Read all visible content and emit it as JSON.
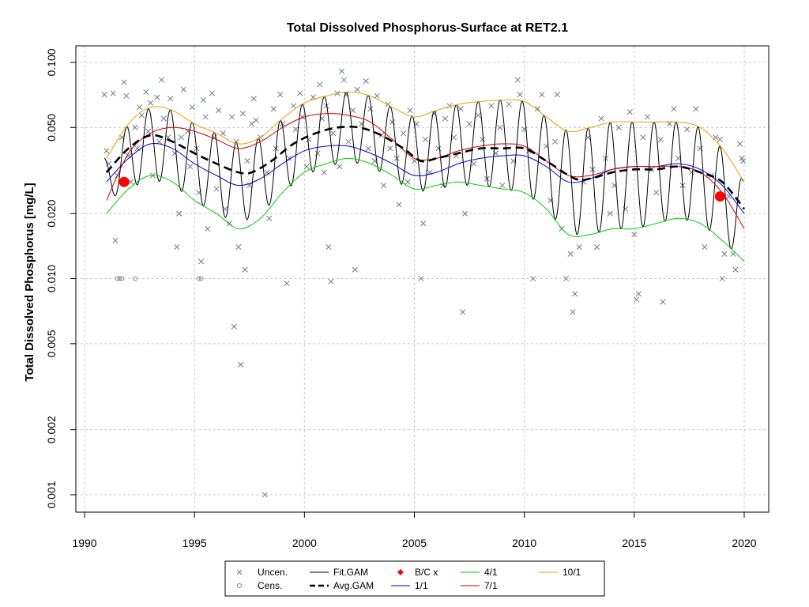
{
  "chart_data": {
    "type": "line",
    "title": "Total Dissolved Phosphorus-Surface at RET2.1",
    "xlabel": "",
    "ylabel": "Total Dissolved Phosphorus [mg/L]",
    "xlim": [
      1990,
      2020
    ],
    "ylim": [
      0.001,
      0.1
    ],
    "y_scale": "log",
    "x_ticks": [
      1990,
      1995,
      2000,
      2005,
      2010,
      2015,
      2020
    ],
    "y_ticks": [
      {
        "value": 0.001,
        "label": "0.001"
      },
      {
        "value": 0.002,
        "label": "0.002"
      },
      {
        "value": 0.005,
        "label": "0.005"
      },
      {
        "value": 0.01,
        "label": "0.010"
      },
      {
        "value": 0.02,
        "label": "0.020"
      },
      {
        "value": 0.05,
        "label": "0.050"
      },
      {
        "value": 0.1,
        "label": "0.100"
      }
    ],
    "grid": true,
    "legend_position": "bottom",
    "legend": [
      {
        "label": "Uncen.",
        "kind": "x-marker",
        "color": "#6e7b8b"
      },
      {
        "label": "Cens.",
        "kind": "circle-marker",
        "color": "#888888"
      },
      {
        "label": "Fit.GAM",
        "kind": "line",
        "color": "#000000"
      },
      {
        "label": "Avg.GAM",
        "kind": "dashed-line",
        "color": "#000000"
      },
      {
        "label": "B/C x",
        "kind": "diamond-marker",
        "color": "#ff0000"
      },
      {
        "label": "1/1",
        "kind": "line",
        "color": "#0000cd"
      },
      {
        "label": "4/1",
        "kind": "line",
        "color": "#00cd00"
      },
      {
        "label": "7/1",
        "kind": "line",
        "color": "#cd0000"
      },
      {
        "label": "10/1",
        "kind": "line",
        "color": "#e8a000"
      }
    ],
    "series": [
      {
        "name": "Avg.GAM",
        "color": "#000000",
        "style": "dashed",
        "x": [
          1991.0,
          1992.0,
          1993.0,
          1994.0,
          1995.0,
          1996.0,
          1997.0,
          1997.6,
          1998.5,
          1999.5,
          2000.5,
          2001.5,
          2002.5,
          2003.5,
          2004.5,
          2005.3,
          2006.0,
          2007.0,
          2008.0,
          2009.0,
          2010.0,
          2011.0,
          2012.3,
          2013.0,
          2014.0,
          2015.0,
          2016.0,
          2017.0,
          2018.0,
          2019.0,
          2020.0
        ],
        "y": [
          0.031,
          0.04,
          0.046,
          0.043,
          0.038,
          0.034,
          0.031,
          0.031,
          0.035,
          0.042,
          0.047,
          0.05,
          0.05,
          0.046,
          0.04,
          0.035,
          0.036,
          0.038,
          0.04,
          0.04,
          0.04,
          0.035,
          0.029,
          0.029,
          0.031,
          0.032,
          0.032,
          0.033,
          0.031,
          0.028,
          0.021
        ]
      },
      {
        "name": "1/1",
        "color": "#0000cd",
        "style": "solid",
        "x": [
          1991.0,
          1992.0,
          1993.0,
          1994.0,
          1995.0,
          1996.0,
          1997.0,
          1998.0,
          1999.0,
          2000.0,
          2001.0,
          2002.0,
          2003.0,
          2004.0,
          2005.0,
          2006.0,
          2007.0,
          2008.0,
          2009.0,
          2010.0,
          2011.0,
          2012.0,
          2013.0,
          2014.0,
          2015.0,
          2016.0,
          2017.0,
          2018.0,
          2019.0,
          2020.0
        ],
        "y": [
          0.028,
          0.036,
          0.042,
          0.04,
          0.034,
          0.03,
          0.027,
          0.029,
          0.034,
          0.039,
          0.041,
          0.041,
          0.038,
          0.034,
          0.03,
          0.031,
          0.034,
          0.036,
          0.037,
          0.037,
          0.033,
          0.028,
          0.029,
          0.032,
          0.033,
          0.033,
          0.034,
          0.032,
          0.027,
          0.02
        ]
      },
      {
        "name": "4/1",
        "color": "#00cd00",
        "style": "solid",
        "x": [
          1991.0,
          1992.0,
          1993.0,
          1994.0,
          1995.0,
          1996.0,
          1997.0,
          1998.0,
          1999.0,
          2000.0,
          2001.0,
          2002.0,
          2003.0,
          2004.0,
          2005.0,
          2006.0,
          2007.0,
          2008.0,
          2009.0,
          2010.0,
          2011.0,
          2012.0,
          2013.0,
          2014.0,
          2015.0,
          2016.0,
          2017.0,
          2018.0,
          2019.0,
          2020.0
        ],
        "y": [
          0.02,
          0.026,
          0.03,
          0.028,
          0.023,
          0.02,
          0.017,
          0.019,
          0.025,
          0.031,
          0.034,
          0.036,
          0.034,
          0.03,
          0.026,
          0.027,
          0.028,
          0.027,
          0.026,
          0.025,
          0.021,
          0.016,
          0.016,
          0.017,
          0.017,
          0.018,
          0.019,
          0.018,
          0.015,
          0.012
        ]
      },
      {
        "name": "7/1",
        "color": "#cd0000",
        "style": "solid",
        "x": [
          1991.0,
          1992.0,
          1993.0,
          1994.0,
          1995.0,
          1996.0,
          1997.0,
          1998.0,
          1999.0,
          2000.0,
          2001.0,
          2002.0,
          2003.0,
          2004.0,
          2005.0,
          2006.0,
          2007.0,
          2008.0,
          2009.0,
          2010.0,
          2011.0,
          2012.0,
          2013.0,
          2014.0,
          2015.0,
          2016.0,
          2017.0,
          2018.0,
          2019.0,
          2020.0
        ],
        "y": [
          0.023,
          0.038,
          0.047,
          0.05,
          0.048,
          0.044,
          0.04,
          0.043,
          0.05,
          0.056,
          0.058,
          0.057,
          0.053,
          0.044,
          0.036,
          0.036,
          0.039,
          0.041,
          0.042,
          0.041,
          0.035,
          0.03,
          0.03,
          0.032,
          0.033,
          0.033,
          0.033,
          0.031,
          0.025,
          0.017
        ]
      },
      {
        "name": "10/1",
        "color": "#e8a000",
        "style": "solid",
        "x": [
          1991.0,
          1992.0,
          1993.0,
          1994.0,
          1995.0,
          1996.0,
          1997.0,
          1998.0,
          1999.0,
          2000.0,
          2001.0,
          2002.0,
          2003.0,
          2004.0,
          2005.0,
          2006.0,
          2007.0,
          2008.0,
          2009.0,
          2010.0,
          2011.0,
          2012.0,
          2013.0,
          2014.0,
          2015.0,
          2016.0,
          2017.0,
          2018.0,
          2019.0,
          2020.0
        ],
        "y": [
          0.036,
          0.052,
          0.062,
          0.06,
          0.052,
          0.047,
          0.042,
          0.045,
          0.055,
          0.065,
          0.07,
          0.073,
          0.07,
          0.062,
          0.056,
          0.06,
          0.064,
          0.066,
          0.067,
          0.066,
          0.056,
          0.048,
          0.05,
          0.053,
          0.053,
          0.053,
          0.053,
          0.05,
          0.04,
          0.028
        ]
      },
      {
        "name": "Fit.GAM",
        "color": "#000000",
        "style": "solid-seasonal",
        "x": [
          1991.0,
          1992.0,
          1993.0,
          1994.0,
          1995.0,
          1996.0,
          1997.0,
          1998.0,
          1999.0,
          2000.0,
          2001.0,
          2002.0,
          2003.0,
          2004.0,
          2005.0,
          2006.0,
          2007.0,
          2008.0,
          2009.0,
          2010.0,
          2011.0,
          2012.0,
          2013.0,
          2014.0,
          2015.0,
          2016.0,
          2017.0,
          2018.0,
          2019.0,
          2020.0
        ],
        "y_low": [
          0.023,
          0.026,
          0.029,
          0.027,
          0.023,
          0.02,
          0.018,
          0.02,
          0.025,
          0.03,
          0.033,
          0.035,
          0.033,
          0.029,
          0.025,
          0.026,
          0.027,
          0.027,
          0.026,
          0.025,
          0.021,
          0.016,
          0.016,
          0.017,
          0.017,
          0.018,
          0.019,
          0.018,
          0.015,
          0.012
        ],
        "y_high": [
          0.036,
          0.052,
          0.062,
          0.06,
          0.052,
          0.047,
          0.042,
          0.045,
          0.055,
          0.065,
          0.07,
          0.073,
          0.07,
          0.062,
          0.056,
          0.06,
          0.064,
          0.066,
          0.067,
          0.066,
          0.056,
          0.048,
          0.05,
          0.053,
          0.053,
          0.053,
          0.053,
          0.05,
          0.04,
          0.028
        ]
      }
    ],
    "uncensored_points": [
      [
        1990.9,
        0.071
      ],
      [
        1991.0,
        0.039
      ],
      [
        1991.1,
        0.034
      ],
      [
        1991.3,
        0.072
      ],
      [
        1991.4,
        0.015
      ],
      [
        1991.5,
        0.03
      ],
      [
        1991.7,
        0.045
      ],
      [
        1991.8,
        0.081
      ],
      [
        1991.9,
        0.07
      ],
      [
        1992.0,
        0.037
      ],
      [
        1992.1,
        0.028
      ],
      [
        1992.3,
        0.05
      ],
      [
        1992.4,
        0.04
      ],
      [
        1992.5,
        0.062
      ],
      [
        1992.6,
        0.057
      ],
      [
        1992.8,
        0.073
      ],
      [
        1992.9,
        0.048
      ],
      [
        1993.0,
        0.065
      ],
      [
        1993.1,
        0.03
      ],
      [
        1993.3,
        0.069
      ],
      [
        1993.4,
        0.043
      ],
      [
        1993.5,
        0.083
      ],
      [
        1993.6,
        0.055
      ],
      [
        1993.8,
        0.045
      ],
      [
        1993.9,
        0.068
      ],
      [
        1994.1,
        0.038
      ],
      [
        1994.2,
        0.014
      ],
      [
        1994.3,
        0.02
      ],
      [
        1994.4,
        0.045
      ],
      [
        1994.5,
        0.075
      ],
      [
        1994.7,
        0.048
      ],
      [
        1994.8,
        0.033
      ],
      [
        1994.9,
        0.062
      ],
      [
        1995.1,
        0.04
      ],
      [
        1995.2,
        0.025
      ],
      [
        1995.3,
        0.012
      ],
      [
        1995.4,
        0.067
      ],
      [
        1995.5,
        0.056
      ],
      [
        1995.6,
        0.017
      ],
      [
        1995.8,
        0.072
      ],
      [
        1995.9,
        0.045
      ],
      [
        1996.0,
        0.026
      ],
      [
        1996.1,
        0.06
      ],
      [
        1996.3,
        0.047
      ],
      [
        1996.4,
        0.021
      ],
      [
        1996.6,
        0.018
      ],
      [
        1996.7,
        0.056
      ],
      [
        1996.8,
        0.006
      ],
      [
        1996.9,
        0.043
      ],
      [
        1997.0,
        0.014
      ],
      [
        1997.1,
        0.004
      ],
      [
        1997.2,
        0.058
      ],
      [
        1997.3,
        0.011
      ],
      [
        1997.4,
        0.035
      ],
      [
        1997.5,
        0.027
      ],
      [
        1997.6,
        0.052
      ],
      [
        1997.7,
        0.068
      ],
      [
        1997.8,
        0.054
      ],
      [
        1998.0,
        0.045
      ],
      [
        1998.2,
        0.001
      ],
      [
        1998.3,
        0.031
      ],
      [
        1998.4,
        0.019
      ],
      [
        1998.6,
        0.061
      ],
      [
        1998.7,
        0.04
      ],
      [
        1998.9,
        0.071
      ],
      [
        1999.0,
        0.052
      ],
      [
        1999.2,
        0.0095
      ],
      [
        1999.3,
        0.036
      ],
      [
        1999.5,
        0.063
      ],
      [
        1999.6,
        0.049
      ],
      [
        1999.8,
        0.072
      ],
      [
        1999.9,
        0.056
      ],
      [
        2000.1,
        0.033
      ],
      [
        2000.2,
        0.044
      ],
      [
        2000.4,
        0.069
      ],
      [
        2000.6,
        0.038
      ],
      [
        2000.7,
        0.079
      ],
      [
        2000.8,
        0.055
      ],
      [
        2000.9,
        0.031
      ],
      [
        2001.0,
        0.063
      ],
      [
        2001.1,
        0.014
      ],
      [
        2001.2,
        0.0097
      ],
      [
        2001.3,
        0.047
      ],
      [
        2001.5,
        0.072
      ],
      [
        2001.6,
        0.033
      ],
      [
        2001.7,
        0.091
      ],
      [
        2001.8,
        0.083
      ],
      [
        2001.9,
        0.071
      ],
      [
        2002.0,
        0.043
      ],
      [
        2002.2,
        0.06
      ],
      [
        2002.3,
        0.011
      ],
      [
        2002.4,
        0.075
      ],
      [
        2002.6,
        0.052
      ],
      [
        2002.8,
        0.082
      ],
      [
        2002.9,
        0.04
      ],
      [
        2003.0,
        0.061
      ],
      [
        2003.2,
        0.035
      ],
      [
        2003.3,
        0.07
      ],
      [
        2003.5,
        0.046
      ],
      [
        2003.6,
        0.027
      ],
      [
        2003.8,
        0.064
      ],
      [
        2003.9,
        0.04
      ],
      [
        2004.0,
        0.053
      ],
      [
        2004.2,
        0.036
      ],
      [
        2004.3,
        0.022
      ],
      [
        2004.5,
        0.047
      ],
      [
        2004.7,
        0.028
      ],
      [
        2004.8,
        0.06
      ],
      [
        2005.0,
        0.035
      ],
      [
        2005.1,
        0.052
      ],
      [
        2005.3,
        0.01
      ],
      [
        2005.4,
        0.018
      ],
      [
        2005.5,
        0.044
      ],
      [
        2005.7,
        0.031
      ],
      [
        2005.9,
        0.058
      ],
      [
        2006.1,
        0.04
      ],
      [
        2006.3,
        0.027
      ],
      [
        2006.4,
        0.055
      ],
      [
        2006.6,
        0.063
      ],
      [
        2006.8,
        0.045
      ],
      [
        2006.9,
        0.037
      ],
      [
        2007.1,
        0.061
      ],
      [
        2007.2,
        0.007
      ],
      [
        2007.3,
        0.02
      ],
      [
        2007.5,
        0.052
      ],
      [
        2007.7,
        0.034
      ],
      [
        2007.9,
        0.057
      ],
      [
        2008.1,
        0.044
      ],
      [
        2008.3,
        0.029
      ],
      [
        2008.5,
        0.063
      ],
      [
        2008.7,
        0.038
      ],
      [
        2008.9,
        0.05
      ],
      [
        2009.0,
        0.027
      ],
      [
        2009.3,
        0.064
      ],
      [
        2009.5,
        0.035
      ],
      [
        2009.7,
        0.083
      ],
      [
        2009.8,
        0.071
      ],
      [
        2010.0,
        0.049
      ],
      [
        2010.2,
        0.039
      ],
      [
        2010.4,
        0.01
      ],
      [
        2010.6,
        0.061
      ],
      [
        2010.8,
        0.071
      ],
      [
        2011.0,
        0.041
      ],
      [
        2011.2,
        0.023
      ],
      [
        2011.4,
        0.043
      ],
      [
        2011.5,
        0.071
      ],
      [
        2011.7,
        0.017
      ],
      [
        2011.9,
        0.01
      ],
      [
        2012.1,
        0.013
      ],
      [
        2012.2,
        0.007
      ],
      [
        2012.3,
        0.0085
      ],
      [
        2012.5,
        0.014
      ],
      [
        2012.7,
        0.028
      ],
      [
        2012.9,
        0.045
      ],
      [
        2013.1,
        0.032
      ],
      [
        2013.3,
        0.014
      ],
      [
        2013.5,
        0.055
      ],
      [
        2013.7,
        0.036
      ],
      [
        2013.9,
        0.02
      ],
      [
        2014.1,
        0.027
      ],
      [
        2014.3,
        0.05
      ],
      [
        2014.6,
        0.021
      ],
      [
        2014.8,
        0.059
      ],
      [
        2015.0,
        0.016
      ],
      [
        2015.1,
        0.008
      ],
      [
        2015.2,
        0.0085
      ],
      [
        2015.4,
        0.045
      ],
      [
        2015.6,
        0.056
      ],
      [
        2015.8,
        0.032
      ],
      [
        2016.0,
        0.025
      ],
      [
        2016.2,
        0.044
      ],
      [
        2016.3,
        0.0078
      ],
      [
        2016.6,
        0.052
      ],
      [
        2016.8,
        0.061
      ],
      [
        2017.0,
        0.036
      ],
      [
        2017.2,
        0.027
      ],
      [
        2017.4,
        0.049
      ],
      [
        2017.6,
        0.031
      ],
      [
        2017.8,
        0.061
      ],
      [
        2018.0,
        0.04
      ],
      [
        2018.2,
        0.014
      ],
      [
        2018.5,
        0.03
      ],
      [
        2018.7,
        0.045
      ],
      [
        2018.9,
        0.044
      ],
      [
        2019.0,
        0.01
      ],
      [
        2019.1,
        0.013
      ],
      [
        2019.3,
        0.024
      ],
      [
        2019.5,
        0.013
      ],
      [
        2019.6,
        0.011
      ],
      [
        2019.8,
        0.042
      ],
      [
        2019.9,
        0.036
      ],
      [
        2019.95,
        0.035
      ]
    ],
    "censored_points": [
      [
        1991.5,
        0.01
      ],
      [
        1991.6,
        0.01
      ],
      [
        1991.7,
        0.01
      ],
      [
        1992.3,
        0.01
      ],
      [
        1995.2,
        0.01
      ],
      [
        1995.3,
        0.01
      ]
    ],
    "bc_points": [
      [
        1991.8,
        0.028
      ],
      [
        2018.9,
        0.024
      ]
    ],
    "colors": {
      "uncen": "#6e7b8b",
      "cens": "#888888",
      "bc": "#ff0000",
      "grid": "#c8c8c8"
    }
  }
}
